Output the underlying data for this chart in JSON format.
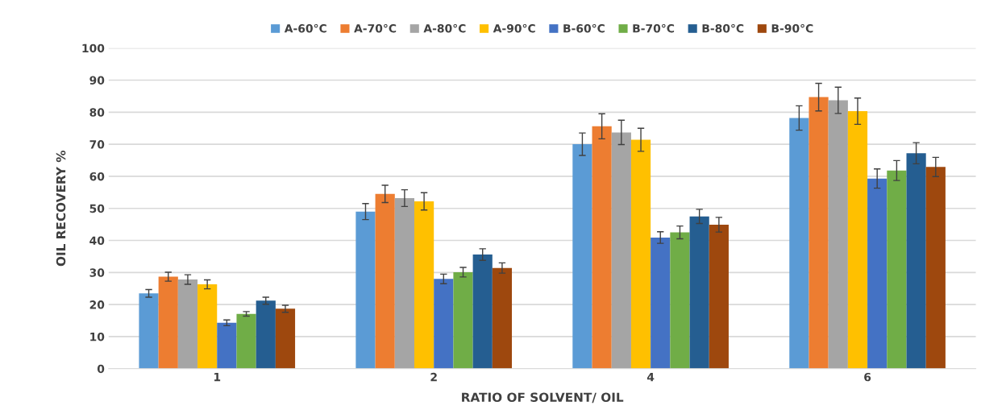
{
  "chart_data": {
    "type": "bar",
    "xlabel": "RATIO OF SOLVENT/ OIL",
    "ylabel": "OIL RECOVERY %",
    "categories": [
      "1",
      "2",
      "4",
      "6"
    ],
    "series": [
      {
        "name": "A-60°C",
        "color": "#5b9bd5",
        "values": [
          23.5,
          49,
          70,
          78.2
        ],
        "errors": [
          1.2,
          2.5,
          3.5,
          3.8
        ]
      },
      {
        "name": "A-70°C",
        "color": "#ed7d31",
        "values": [
          28.7,
          54.5,
          75.6,
          84.7
        ],
        "errors": [
          1.4,
          2.7,
          3.9,
          4.3
        ]
      },
      {
        "name": "A-80°C",
        "color": "#a5a5a5",
        "values": [
          27.8,
          53.2,
          73.7,
          83.7
        ],
        "errors": [
          1.5,
          2.6,
          3.8,
          4.1
        ]
      },
      {
        "name": "A-90°C",
        "color": "#ffc000",
        "values": [
          26.3,
          52.2,
          71.4,
          80.3
        ],
        "errors": [
          1.4,
          2.7,
          3.6,
          4.1
        ]
      },
      {
        "name": "B-60°C",
        "color": "#4472c4",
        "values": [
          14.3,
          28,
          40.9,
          59.3
        ],
        "errors": [
          0.9,
          1.5,
          1.8,
          3.0
        ]
      },
      {
        "name": "B-70°C",
        "color": "#70ad47",
        "values": [
          17.1,
          30.1,
          42.5,
          61.8
        ],
        "errors": [
          0.7,
          1.5,
          2.0,
          3.1
        ]
      },
      {
        "name": "B-80°C",
        "color": "#255e91",
        "values": [
          21.2,
          35.6,
          47.5,
          67.2
        ],
        "errors": [
          1.1,
          1.8,
          2.2,
          3.3
        ]
      },
      {
        "name": "B-90°C",
        "color": "#9e480e",
        "values": [
          18.7,
          31.4,
          44.9,
          62.9
        ],
        "errors": [
          1.1,
          1.6,
          2.3,
          3.0
        ]
      }
    ],
    "ylim": [
      0,
      100
    ],
    "yticks": [
      0,
      10,
      20,
      30,
      40,
      50,
      60,
      70,
      80,
      90,
      100
    ],
    "grid": "y",
    "legend": "top"
  }
}
